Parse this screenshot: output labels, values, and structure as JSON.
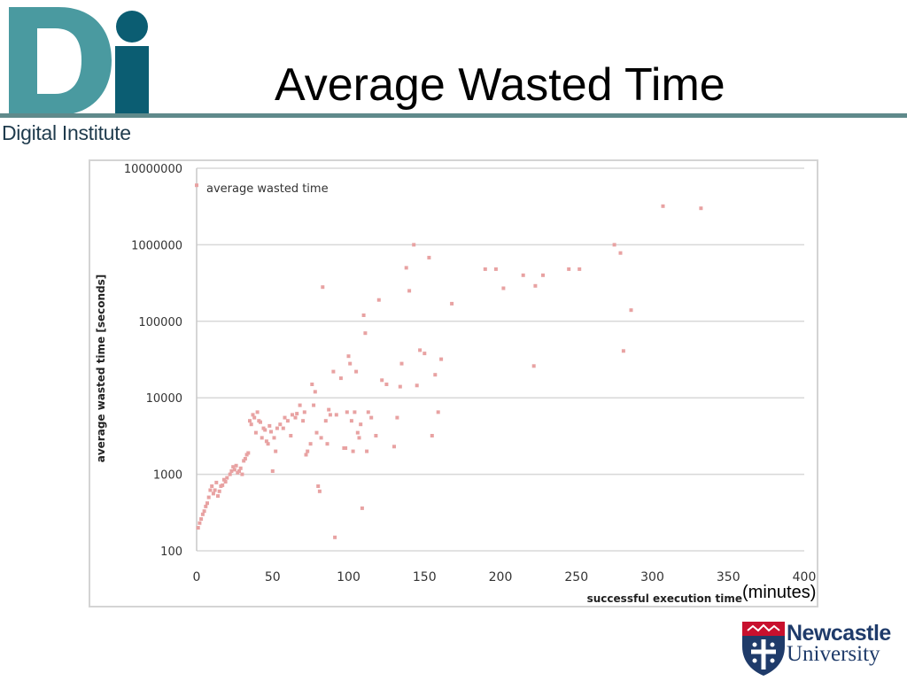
{
  "colors": {
    "logo_teal": "#4a9aa0",
    "logo_dark": "#0b5d72",
    "rule": "#5f8a8b",
    "point": "#e8a2a2",
    "grid": "#d8d8d8",
    "university_navy": "#1f3b6a",
    "university_red": "#c8102e"
  },
  "logo": {
    "letters": "Di",
    "subtitle": "Digital Institute"
  },
  "header": {
    "title": "Average Wasted Time"
  },
  "university": {
    "line1": "Newcastle",
    "line2": "University"
  },
  "note": "(minutes)",
  "chart_data": {
    "type": "scatter",
    "title": "",
    "xlabel": "successful execution time",
    "ylabel": "average wasted time [seconds]",
    "legend": "average wasted time",
    "legend_position": "top-left",
    "grid": true,
    "xlim": [
      0,
      400
    ],
    "ylim": [
      100,
      10000000
    ],
    "ylog": true,
    "x_ticks": [
      "0",
      "50",
      "100",
      "150",
      "200",
      "250",
      "300",
      "350",
      "400"
    ],
    "y_ticks": [
      "100",
      "1000",
      "10000",
      "100000",
      "1000000",
      "10000000"
    ],
    "series": [
      {
        "name": "average wasted time",
        "points": [
          [
            0,
            6000000
          ],
          [
            1,
            200
          ],
          [
            2,
            230
          ],
          [
            3,
            260
          ],
          [
            4,
            300
          ],
          [
            5,
            330
          ],
          [
            6,
            380
          ],
          [
            7,
            420
          ],
          [
            8,
            500
          ],
          [
            9,
            620
          ],
          [
            10,
            700
          ],
          [
            11,
            560
          ],
          [
            12,
            620
          ],
          [
            13,
            780
          ],
          [
            14,
            520
          ],
          [
            15,
            600
          ],
          [
            16,
            700
          ],
          [
            17,
            720
          ],
          [
            18,
            850
          ],
          [
            19,
            800
          ],
          [
            20,
            900
          ],
          [
            22,
            1000
          ],
          [
            23,
            1100
          ],
          [
            24,
            1250
          ],
          [
            25,
            1150
          ],
          [
            26,
            1300
          ],
          [
            27,
            1050
          ],
          [
            28,
            1100
          ],
          [
            29,
            1200
          ],
          [
            30,
            1000
          ],
          [
            31,
            1500
          ],
          [
            32,
            1600
          ],
          [
            33,
            1800
          ],
          [
            34,
            1900
          ],
          [
            35,
            5000
          ],
          [
            36,
            4500
          ],
          [
            37,
            6000
          ],
          [
            38,
            5500
          ],
          [
            39,
            3500
          ],
          [
            40,
            6500
          ],
          [
            41,
            5000
          ],
          [
            42,
            4800
          ],
          [
            43,
            3000
          ],
          [
            44,
            4000
          ],
          [
            45,
            3800
          ],
          [
            46,
            2700
          ],
          [
            47,
            2500
          ],
          [
            48,
            4300
          ],
          [
            49,
            3600
          ],
          [
            50,
            1100
          ],
          [
            51,
            3000
          ],
          [
            52,
            2000
          ],
          [
            53,
            4000
          ],
          [
            55,
            4500
          ],
          [
            57,
            4000
          ],
          [
            58,
            5500
          ],
          [
            60,
            5000
          ],
          [
            62,
            3200
          ],
          [
            63,
            6000
          ],
          [
            65,
            5500
          ],
          [
            66,
            6200
          ],
          [
            68,
            8000
          ],
          [
            70,
            5000
          ],
          [
            71,
            6500
          ],
          [
            72,
            1800
          ],
          [
            73,
            2000
          ],
          [
            75,
            2500
          ],
          [
            76,
            15000
          ],
          [
            77,
            8000
          ],
          [
            78,
            12000
          ],
          [
            79,
            3500
          ],
          [
            80,
            700
          ],
          [
            81,
            600
          ],
          [
            82,
            3000
          ],
          [
            83,
            280000
          ],
          [
            85,
            5000
          ],
          [
            86,
            2500
          ],
          [
            87,
            7000
          ],
          [
            88,
            6000
          ],
          [
            90,
            22000
          ],
          [
            91,
            150
          ],
          [
            92,
            6000
          ],
          [
            95,
            18000
          ],
          [
            97,
            2200
          ],
          [
            98,
            2200
          ],
          [
            99,
            6500
          ],
          [
            100,
            35000
          ],
          [
            101,
            28000
          ],
          [
            102,
            5000
          ],
          [
            103,
            2000
          ],
          [
            104,
            6500
          ],
          [
            105,
            22000
          ],
          [
            106,
            3500
          ],
          [
            107,
            3000
          ],
          [
            108,
            4500
          ],
          [
            109,
            360
          ],
          [
            110,
            120000
          ],
          [
            111,
            70000
          ],
          [
            112,
            2000
          ],
          [
            113,
            6500
          ],
          [
            115,
            5500
          ],
          [
            118,
            3200
          ],
          [
            120,
            190000
          ],
          [
            122,
            17000
          ],
          [
            125,
            15000
          ],
          [
            130,
            2300
          ],
          [
            132,
            5500
          ],
          [
            134,
            14000
          ],
          [
            135,
            28000
          ],
          [
            138,
            500000
          ],
          [
            140,
            250000
          ],
          [
            143,
            1000000
          ],
          [
            145,
            14500
          ],
          [
            147,
            42000
          ],
          [
            150,
            38000
          ],
          [
            153,
            680000
          ],
          [
            155,
            3200
          ],
          [
            157,
            20000
          ],
          [
            159,
            6500
          ],
          [
            161,
            32000
          ],
          [
            168,
            170000
          ],
          [
            190,
            480000
          ],
          [
            197,
            480000
          ],
          [
            202,
            270000
          ],
          [
            215,
            400000
          ],
          [
            222,
            26000
          ],
          [
            223,
            290000
          ],
          [
            228,
            400000
          ],
          [
            245,
            480000
          ],
          [
            252,
            480000
          ],
          [
            275,
            1000000
          ],
          [
            279,
            780000
          ],
          [
            281,
            41000
          ],
          [
            286,
            140000
          ],
          [
            307,
            3200000
          ],
          [
            332,
            3000000
          ]
        ]
      }
    ]
  }
}
